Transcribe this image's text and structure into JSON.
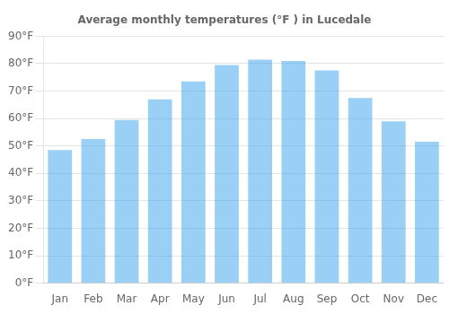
{
  "chart_data": {
    "type": "bar",
    "title": "Average monthly temperatures (°F ) in Lucedale",
    "categories": [
      "Jan",
      "Feb",
      "Mar",
      "Apr",
      "May",
      "Jun",
      "Jul",
      "Aug",
      "Sep",
      "Oct",
      "Nov",
      "Dec"
    ],
    "values": [
      48.5,
      52.5,
      59.5,
      67.0,
      73.5,
      79.5,
      81.5,
      81.0,
      77.5,
      67.5,
      59.0,
      51.5
    ],
    "ylim": [
      0,
      90
    ],
    "yticks": [
      {
        "value": 0,
        "label": "0°F"
      },
      {
        "value": 10,
        "label": "10°F"
      },
      {
        "value": 20,
        "label": "20°F"
      },
      {
        "value": 30,
        "label": "30°F"
      },
      {
        "value": 40,
        "label": "40°F"
      },
      {
        "value": 50,
        "label": "50°F"
      },
      {
        "value": 60,
        "label": "60°F"
      },
      {
        "value": 70,
        "label": "70°F"
      },
      {
        "value": 80,
        "label": "80°F"
      },
      {
        "value": 90,
        "label": "90°F"
      }
    ],
    "grid": true
  }
}
